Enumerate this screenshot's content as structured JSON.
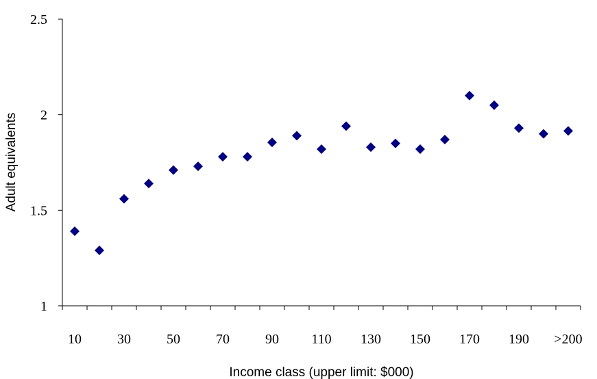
{
  "chart_data": {
    "type": "scatter",
    "x_label": "Income class (upper limit: $000)",
    "y_label": "Adult equivalents",
    "categories": [
      "10",
      null,
      "30",
      null,
      "50",
      null,
      "70",
      null,
      "90",
      null,
      "110",
      null,
      "130",
      null,
      "150",
      null,
      "170",
      null,
      "190",
      null,
      ">200"
    ],
    "values": [
      1.39,
      1.29,
      1.56,
      1.64,
      1.71,
      1.73,
      1.78,
      1.78,
      1.855,
      1.89,
      1.82,
      1.94,
      1.83,
      1.85,
      1.82,
      1.87,
      2.1,
      2.05,
      1.93,
      1.9,
      1.915
    ],
    "color": "#000080",
    "ylim": [
      1,
      2.5
    ],
    "yticks": [
      1,
      1.5,
      2,
      2.5
    ]
  }
}
